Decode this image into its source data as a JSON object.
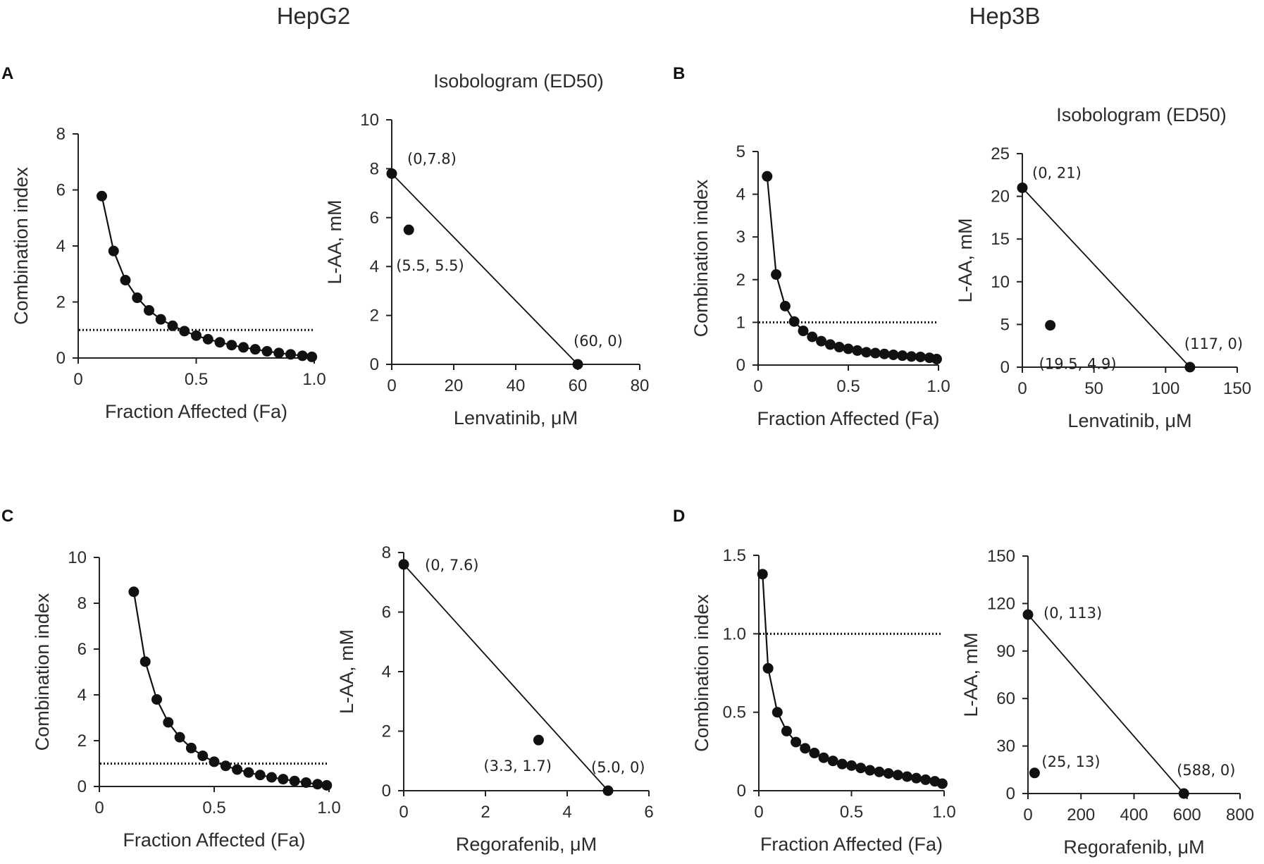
{
  "cell_titles": [
    "HepG2",
    "Hep3B"
  ],
  "panels": [
    {
      "letter": "A"
    },
    {
      "letter": "B"
    },
    {
      "letter": "C"
    },
    {
      "letter": "D"
    }
  ],
  "colors": {
    "marker": "#111111",
    "axis": "#222222",
    "text": "#2b2b2b"
  },
  "chart_data": [
    {
      "panel": "A",
      "type": "line",
      "title": "",
      "xlabel": "Fraction Affected (Fa)",
      "ylabel": "Combination index",
      "xlim": [
        0,
        1.0
      ],
      "ylim": [
        0,
        8
      ],
      "xticks": [
        0,
        0.5,
        1.0
      ],
      "xtick_labels": [
        "0",
        "0.5",
        "1.0"
      ],
      "yticks": [
        0,
        2,
        4,
        6,
        8
      ],
      "ytick_labels": [
        "0",
        "2",
        "4",
        "6",
        "8"
      ],
      "x": [
        0.1,
        0.15,
        0.2,
        0.25,
        0.3,
        0.35,
        0.4,
        0.45,
        0.5,
        0.55,
        0.6,
        0.65,
        0.7,
        0.75,
        0.8,
        0.85,
        0.9,
        0.95,
        0.99
      ],
      "y": [
        5.78,
        3.82,
        2.78,
        2.15,
        1.7,
        1.38,
        1.15,
        0.96,
        0.8,
        0.67,
        0.56,
        0.46,
        0.38,
        0.31,
        0.24,
        0.18,
        0.13,
        0.08,
        0.04
      ],
      "reference_line": 1.0
    },
    {
      "panel": "A",
      "type": "scatter",
      "title": "Isobologram (ED50)",
      "xlabel": "Lenvatinib, μM",
      "ylabel": "L-AA, mM",
      "xlim": [
        0,
        80
      ],
      "ylim": [
        0,
        10
      ],
      "xticks": [
        0,
        20,
        40,
        60,
        80
      ],
      "xtick_labels": [
        "0",
        "20",
        "40",
        "60",
        "80"
      ],
      "yticks": [
        0,
        2,
        4,
        6,
        8,
        10
      ],
      "ytick_labels": [
        "0",
        "2",
        "4",
        "6",
        "8",
        "10"
      ],
      "isobole": [
        [
          0,
          7.8
        ],
        [
          60,
          0
        ]
      ],
      "points": [
        {
          "x": 0,
          "y": 7.8,
          "label": "(0,7.8)"
        },
        {
          "x": 5.5,
          "y": 5.5,
          "label": "(5.5, 5.5)"
        },
        {
          "x": 60,
          "y": 0,
          "label": "(60, 0)"
        }
      ]
    },
    {
      "panel": "B",
      "type": "line",
      "title": "",
      "xlabel": "Fraction Affected (Fa)",
      "ylabel": "Combination index",
      "xlim": [
        0,
        1.0
      ],
      "ylim": [
        0,
        5
      ],
      "xticks": [
        0,
        0.5,
        1.0
      ],
      "xtick_labels": [
        "0",
        "0.5",
        "1.0"
      ],
      "yticks": [
        0,
        1,
        2,
        3,
        4,
        5
      ],
      "ytick_labels": [
        "0",
        "1",
        "2",
        "3",
        "4",
        "5"
      ],
      "x": [
        0.05,
        0.1,
        0.15,
        0.2,
        0.25,
        0.3,
        0.35,
        0.4,
        0.45,
        0.5,
        0.55,
        0.6,
        0.65,
        0.7,
        0.75,
        0.8,
        0.85,
        0.9,
        0.95,
        0.99
      ],
      "y": [
        4.42,
        2.12,
        1.38,
        1.02,
        0.8,
        0.66,
        0.56,
        0.48,
        0.42,
        0.38,
        0.34,
        0.3,
        0.28,
        0.26,
        0.24,
        0.22,
        0.2,
        0.19,
        0.17,
        0.14
      ],
      "reference_line": 1.0
    },
    {
      "panel": "B",
      "type": "scatter",
      "title": "Isobologram (ED50)",
      "xlabel": "Lenvatinib, μM",
      "ylabel": "L-AA, mM",
      "xlim": [
        0,
        150
      ],
      "ylim": [
        0,
        25
      ],
      "xticks": [
        0,
        50,
        100,
        150
      ],
      "xtick_labels": [
        "0",
        "50",
        "100",
        "150"
      ],
      "yticks": [
        0,
        5,
        10,
        15,
        20,
        25
      ],
      "ytick_labels": [
        "0",
        "5",
        "10",
        "15",
        "20",
        "25"
      ],
      "isobole": [
        [
          0,
          21
        ],
        [
          117,
          0
        ]
      ],
      "points": [
        {
          "x": 0,
          "y": 21,
          "label": "(0, 21)"
        },
        {
          "x": 19.5,
          "y": 4.9,
          "label": "(19.5, 4.9)"
        },
        {
          "x": 117,
          "y": 0,
          "label": "(117, 0)"
        }
      ]
    },
    {
      "panel": "C",
      "type": "line",
      "title": "",
      "xlabel": "Fraction Affected (Fa)",
      "ylabel": "Combination index",
      "xlim": [
        0,
        1.0
      ],
      "ylim": [
        0,
        10
      ],
      "xticks": [
        0,
        0.5,
        1.0
      ],
      "xtick_labels": [
        "0",
        "0.5",
        "1.0"
      ],
      "yticks": [
        0,
        2,
        4,
        6,
        8,
        10
      ],
      "ytick_labels": [
        "0",
        "2",
        "4",
        "6",
        "8",
        "10"
      ],
      "x": [
        0.15,
        0.2,
        0.25,
        0.3,
        0.35,
        0.4,
        0.45,
        0.5,
        0.55,
        0.6,
        0.65,
        0.7,
        0.75,
        0.8,
        0.85,
        0.9,
        0.95,
        0.99
      ],
      "y": [
        8.5,
        5.45,
        3.8,
        2.8,
        2.15,
        1.68,
        1.34,
        1.08,
        0.9,
        0.74,
        0.61,
        0.5,
        0.4,
        0.32,
        0.24,
        0.17,
        0.1,
        0.05
      ],
      "reference_line": 1.0
    },
    {
      "panel": "C",
      "type": "scatter",
      "title": "",
      "xlabel": "Regorafenib, μM",
      "ylabel": "L-AA, mM",
      "xlim": [
        0,
        6
      ],
      "ylim": [
        0,
        8
      ],
      "xticks": [
        0,
        2,
        4,
        6
      ],
      "xtick_labels": [
        "0",
        "2",
        "4",
        "6"
      ],
      "yticks": [
        0,
        2,
        4,
        6,
        8
      ],
      "ytick_labels": [
        "0",
        "2",
        "4",
        "6",
        "8"
      ],
      "isobole": [
        [
          0,
          7.6
        ],
        [
          5.0,
          0
        ]
      ],
      "points": [
        {
          "x": 0,
          "y": 7.6,
          "label": "(0, 7.6)"
        },
        {
          "x": 3.3,
          "y": 1.7,
          "label": "(3.3, 1.7)"
        },
        {
          "x": 5.0,
          "y": 0,
          "label": "(5.0, 0)"
        }
      ]
    },
    {
      "panel": "D",
      "type": "line",
      "title": "",
      "xlabel": "Fraction Affected (Fa)",
      "ylabel": "Combination index",
      "xlim": [
        0,
        1.0
      ],
      "ylim": [
        0,
        1.5
      ],
      "xticks": [
        0,
        0.5,
        1.0
      ],
      "xtick_labels": [
        "0",
        "0.5",
        "1.0"
      ],
      "yticks": [
        0,
        0.5,
        1.0,
        1.5
      ],
      "ytick_labels": [
        "0",
        "0.5",
        "1.0",
        "1.5"
      ],
      "x": [
        0.02,
        0.05,
        0.1,
        0.15,
        0.2,
        0.25,
        0.3,
        0.35,
        0.4,
        0.45,
        0.5,
        0.55,
        0.6,
        0.65,
        0.7,
        0.75,
        0.8,
        0.85,
        0.9,
        0.95,
        0.99
      ],
      "y": [
        1.38,
        0.78,
        0.5,
        0.38,
        0.31,
        0.27,
        0.24,
        0.21,
        0.19,
        0.17,
        0.16,
        0.145,
        0.13,
        0.12,
        0.11,
        0.1,
        0.09,
        0.08,
        0.07,
        0.06,
        0.045
      ],
      "reference_line": 1.0
    },
    {
      "panel": "D",
      "type": "scatter",
      "title": "",
      "xlabel": "Regorafenib, μM",
      "ylabel": "L-AA, mM",
      "xlim": [
        0,
        800
      ],
      "ylim": [
        0,
        150
      ],
      "xticks": [
        0,
        200,
        400,
        600,
        800
      ],
      "xtick_labels": [
        "0",
        "200",
        "400",
        "600",
        "800"
      ],
      "yticks": [
        0,
        30,
        60,
        90,
        120,
        150
      ],
      "ytick_labels": [
        "0",
        "30",
        "60",
        "90",
        "120",
        "150"
      ],
      "isobole": [
        [
          0,
          113
        ],
        [
          588,
          0
        ]
      ],
      "points": [
        {
          "x": 0,
          "y": 113,
          "label": "(0, 113)"
        },
        {
          "x": 25,
          "y": 13,
          "label": "(25, 13)"
        },
        {
          "x": 588,
          "y": 0,
          "label": "(588, 0)"
        }
      ]
    }
  ]
}
